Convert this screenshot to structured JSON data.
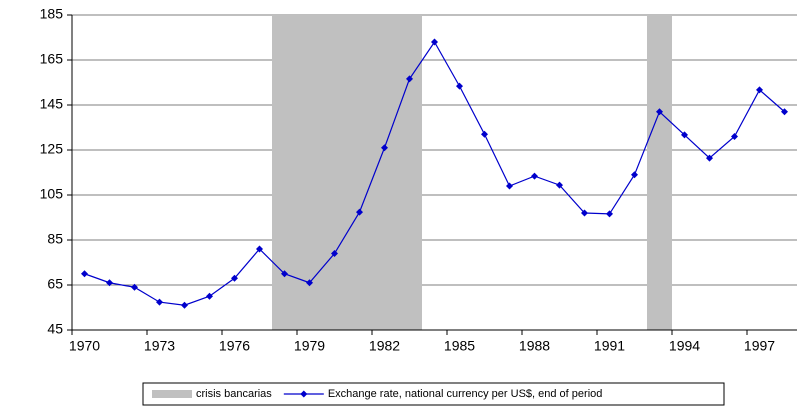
{
  "chart_data": {
    "type": "line",
    "categories": [
      "1970",
      null,
      null,
      "1973",
      null,
      null,
      "1976",
      null,
      null,
      "1979",
      null,
      null,
      "1982",
      null,
      null,
      "1985",
      null,
      null,
      "1988",
      null,
      null,
      "1991",
      null,
      null,
      "1994",
      null,
      null,
      "1997",
      null
    ],
    "series": [
      {
        "name": "crisis bancarias",
        "type": "bar",
        "color": "#c0c0c0",
        "values": [
          null,
          null,
          null,
          null,
          null,
          null,
          null,
          null,
          185,
          185,
          185,
          185,
          185,
          185,
          null,
          null,
          null,
          null,
          null,
          null,
          null,
          null,
          null,
          185,
          null,
          null,
          null,
          null,
          null
        ]
      },
      {
        "name": "Exchange rate, national currency per US$, end of period",
        "type": "line",
        "color": "#0000cc",
        "values": [
          70,
          66,
          64,
          57.4,
          56,
          60,
          68,
          81,
          70,
          66,
          79,
          97.4,
          126,
          156.6,
          173,
          153.4,
          132,
          109,
          113.4,
          109.4,
          97,
          96.6,
          114,
          142,
          131.7,
          121.4,
          131,
          151.7,
          142
        ]
      }
    ],
    "ylim": [
      45,
      185
    ],
    "yticks": [
      45,
      65,
      85,
      105,
      125,
      145,
      165,
      185
    ],
    "grid": true
  }
}
